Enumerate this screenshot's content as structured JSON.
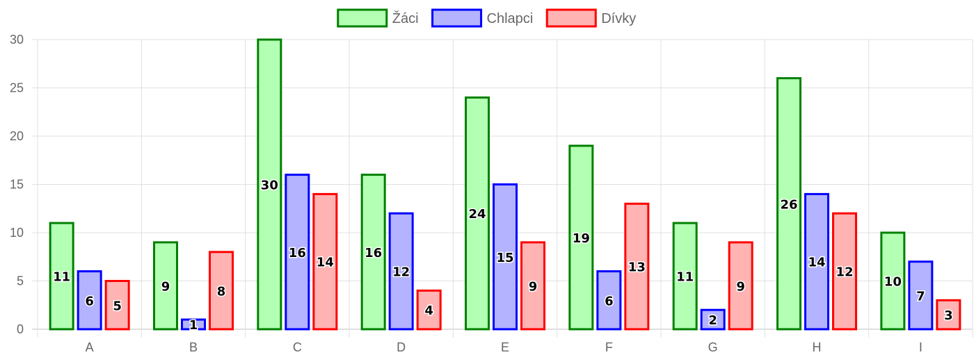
{
  "chart_data": {
    "type": "bar",
    "categories": [
      "A",
      "B",
      "C",
      "D",
      "E",
      "F",
      "G",
      "H",
      "I"
    ],
    "series": [
      {
        "name": "Žáci",
        "values": [
          11,
          9,
          30,
          16,
          24,
          19,
          11,
          26,
          10
        ],
        "fill": "#b3ffb3",
        "stroke": "#008000"
      },
      {
        "name": "Chlapci",
        "values": [
          6,
          1,
          16,
          12,
          15,
          6,
          2,
          14,
          7
        ],
        "fill": "#b3b3ff",
        "stroke": "#0000ff"
      },
      {
        "name": "Dívky",
        "values": [
          5,
          8,
          14,
          4,
          9,
          13,
          9,
          12,
          3
        ],
        "fill": "#ffb3b3",
        "stroke": "#ff0000"
      }
    ],
    "ylim": [
      0,
      30
    ],
    "yticks": [
      0,
      5,
      10,
      15,
      20,
      25,
      30
    ],
    "grid": true,
    "legend": "top-center",
    "data_labels": true
  }
}
